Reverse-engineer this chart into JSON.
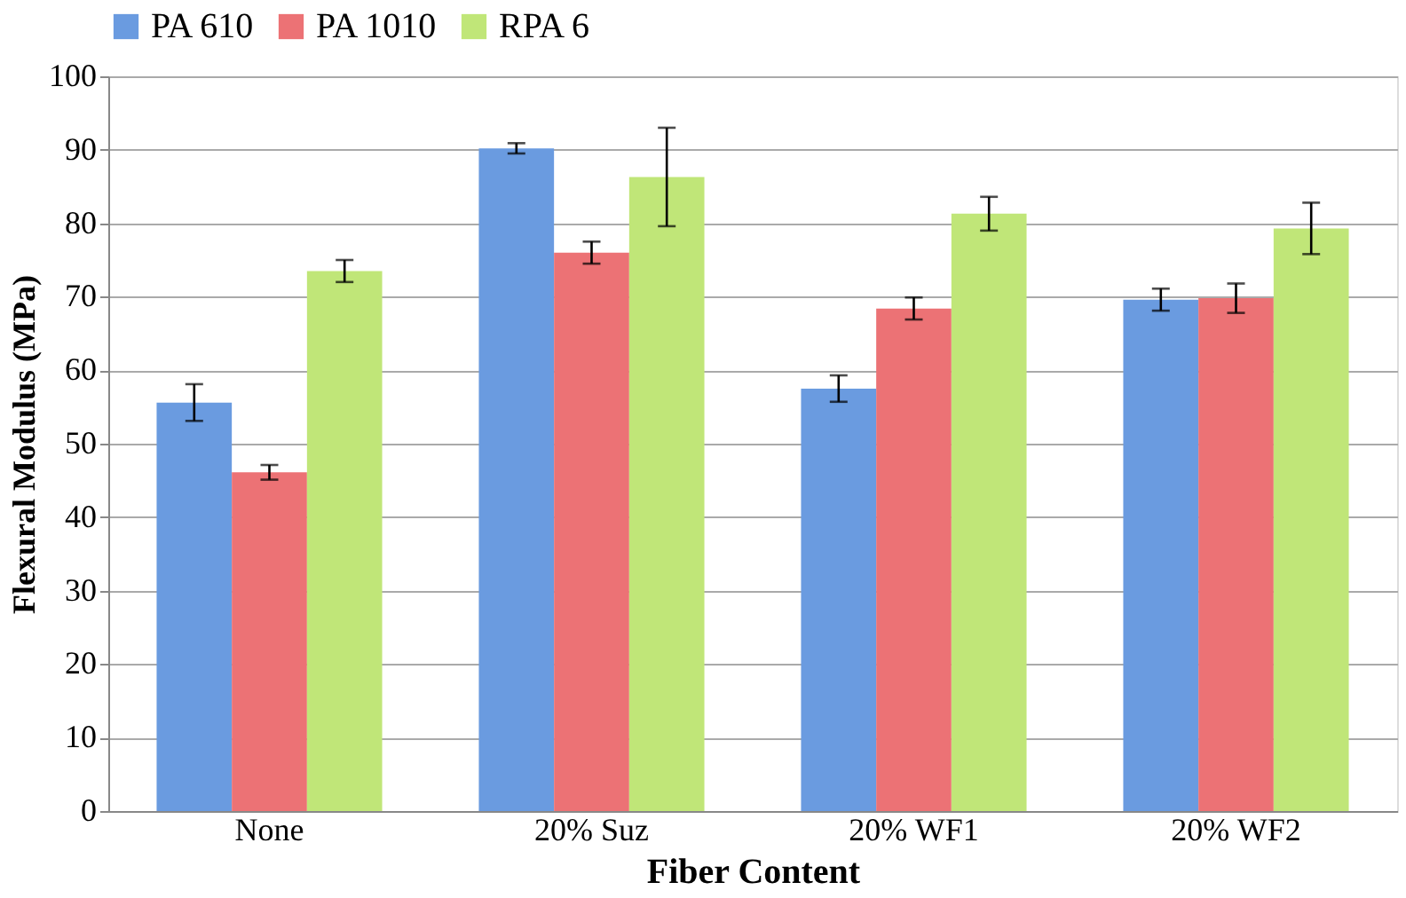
{
  "chart_data": {
    "type": "bar",
    "xlabel": "Fiber Content",
    "ylabel": "Flexural Modulus (MPa)",
    "categories": [
      "None",
      "20% Suz",
      "20% WF1",
      "20% WF2"
    ],
    "series": [
      {
        "name": "PA 610",
        "color": "#6a9be0",
        "values": [
          55.6,
          90.2,
          57.5,
          69.6
        ],
        "errors": [
          2.5,
          0.7,
          1.8,
          1.5
        ]
      },
      {
        "name": "PA 1010",
        "color": "#ec7275",
        "values": [
          46.1,
          76.0,
          68.4,
          69.8
        ],
        "errors": [
          1.0,
          1.5,
          1.5,
          2.0
        ]
      },
      {
        "name": "RPA 6",
        "color": "#c0e678",
        "values": [
          73.5,
          86.3,
          81.3,
          79.3
        ],
        "errors": [
          1.5,
          6.7,
          2.3,
          3.5
        ]
      }
    ],
    "ylim": [
      0,
      100
    ],
    "yticks": [
      0,
      10,
      20,
      30,
      40,
      50,
      60,
      70,
      80,
      90,
      100
    ],
    "grid": "y",
    "legend": "top"
  }
}
